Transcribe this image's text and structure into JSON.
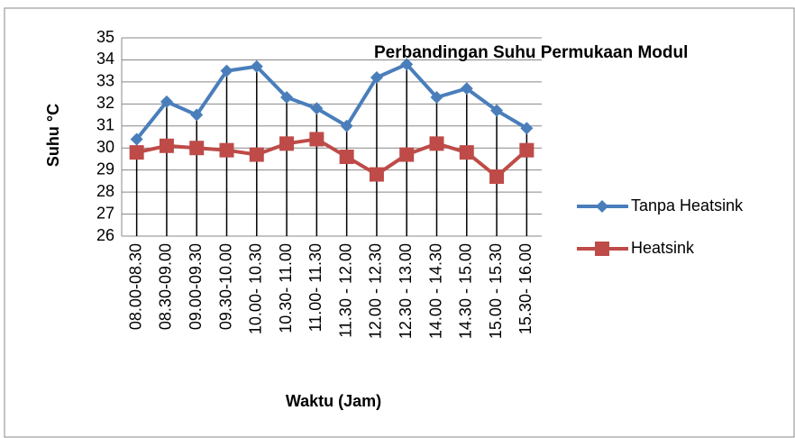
{
  "chart_data": {
    "type": "line",
    "title": "Perbandingan Suhu Permukaan Modul",
    "x_label": "Waktu (Jam)",
    "y_label": "Suhu °C",
    "categories": [
      "08.00-08.30",
      "08.30-09.00",
      "09.00-09.30",
      "09.30-10.00",
      "10.00- 10.30",
      "10.30- 11.00",
      "11.00- 11.30",
      "11.30 - 12.00",
      "12.00 - 12.30",
      "12.30 - 13.00",
      "14.00 - 14.30",
      "14.30 - 15.00",
      "15.00 - 15.30",
      "15.30- 16.00"
    ],
    "series": [
      {
        "name": "Tanpa Heatsink",
        "color": "#4a7ebb",
        "marker": "diamond",
        "values": [
          30.4,
          32.1,
          31.5,
          33.5,
          33.7,
          32.3,
          31.8,
          31.0,
          33.2,
          33.8,
          32.3,
          32.7,
          31.7,
          30.9
        ]
      },
      {
        "name": "Heatsink",
        "color": "#be4b48",
        "marker": "square",
        "values": [
          29.8,
          30.1,
          30.0,
          29.9,
          29.7,
          30.2,
          30.4,
          29.6,
          28.8,
          29.7,
          30.2,
          29.8,
          28.7,
          29.9
        ]
      }
    ],
    "ylim": [
      26,
      35
    ],
    "yticks": [
      26,
      27,
      28,
      29,
      30,
      31,
      32,
      33,
      34,
      35
    ],
    "grid": true,
    "drop_lines": true,
    "legend": "right"
  }
}
